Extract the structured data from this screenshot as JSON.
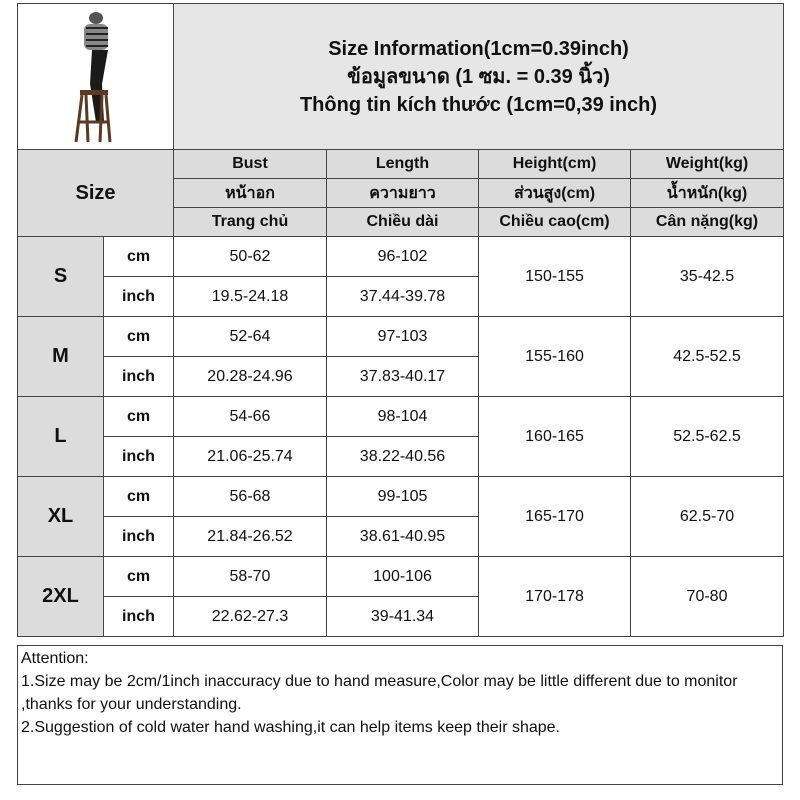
{
  "title": {
    "line1": "Size Information(1cm=0.39inch)",
    "line2": "ข้อมูลขนาด (1 ซม. = 0.39 นิ้ว)",
    "line3": "Thông tin kích thước (1cm=0,39 inch)"
  },
  "headers": {
    "size": "Size",
    "columns": [
      [
        "Bust",
        "หน้าอก",
        "Trang chủ"
      ],
      [
        "Length",
        "ความยาว",
        "Chiều dài"
      ],
      [
        "Height(cm)",
        "ส่วนสูง(cm)",
        "Chiều cao(cm)"
      ],
      [
        "Weight(kg)",
        "น้ำหนัก(kg)",
        "Cân nặng(kg)"
      ]
    ]
  },
  "units": {
    "cm": "cm",
    "inch": "inch"
  },
  "rows": [
    {
      "size": "S",
      "bust_cm": "50-62",
      "length_cm": "96-102",
      "bust_in": "19.5-24.18",
      "length_in": "37.44-39.78",
      "height": "150-155",
      "weight": "35-42.5"
    },
    {
      "size": "M",
      "bust_cm": "52-64",
      "length_cm": "97-103",
      "bust_in": "20.28-24.96",
      "length_in": "37.83-40.17",
      "height": "155-160",
      "weight": "42.5-52.5"
    },
    {
      "size": "L",
      "bust_cm": "54-66",
      "length_cm": "98-104",
      "bust_in": "21.06-25.74",
      "length_in": "38.22-40.56",
      "height": "160-165",
      "weight": "52.5-62.5"
    },
    {
      "size": "XL",
      "bust_cm": "56-68",
      "length_cm": "99-105",
      "bust_in": "21.84-26.52",
      "length_in": "38.61-40.95",
      "height": "165-170",
      "weight": "62.5-70"
    },
    {
      "size": "2XL",
      "bust_cm": "58-70",
      "length_cm": "100-106",
      "bust_in": "22.62-27.3",
      "length_in": "39-41.34",
      "height": "170-178",
      "weight": "70-80"
    }
  ],
  "attention": {
    "heading": "Attention:",
    "note1": "1.Size may be 2cm/1inch inaccuracy due to hand measure,Color may be little different due to monitor ,thanks for your understanding.",
    "note2": "2.Suggestion of cold water hand washing,it can help items keep their shape."
  }
}
